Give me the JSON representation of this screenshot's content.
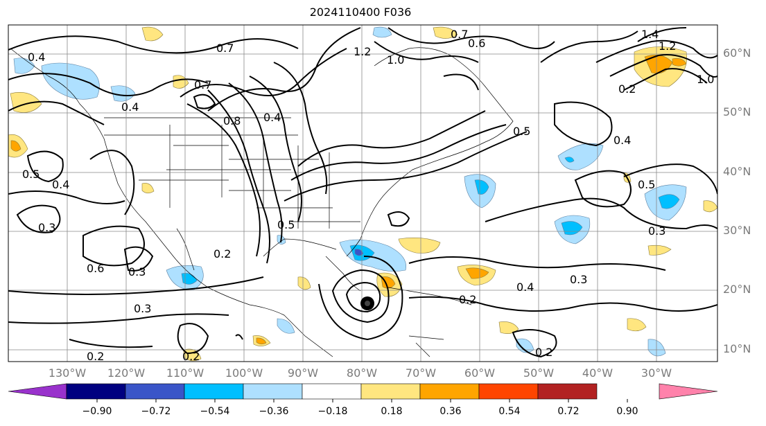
{
  "title": "2024110400 F036",
  "lat_labels": [
    "60°N",
    "50°N",
    "40°N",
    "30°N",
    "20°N",
    "10°N"
  ],
  "lon_labels": [
    "130°W",
    "120°W",
    "110°W",
    "100°W",
    "90°W",
    "80°W",
    "70°W",
    "60°W",
    "50°W",
    "40°W",
    "30°W"
  ],
  "contour_labels": [
    "0.2",
    "0.3",
    "0.4",
    "0.5",
    "0.6",
    "0.7",
    "0.8",
    "1.0",
    "1.2"
  ],
  "colorbar": {
    "ticks": [
      "−0.90",
      "−0.72",
      "−0.54",
      "−0.36",
      "−0.18",
      "0.18",
      "0.36",
      "0.54",
      "0.72",
      "0.90"
    ],
    "colors": [
      "#9932cc",
      "#000080",
      "#3a55c8",
      "#00bfff",
      "#aee0ff",
      "#ffffff",
      "#ffe680",
      "#ffa500",
      "#ff4500",
      "#b22222",
      "#ff82ab"
    ]
  },
  "storm_marker": "hurricane-symbol"
}
